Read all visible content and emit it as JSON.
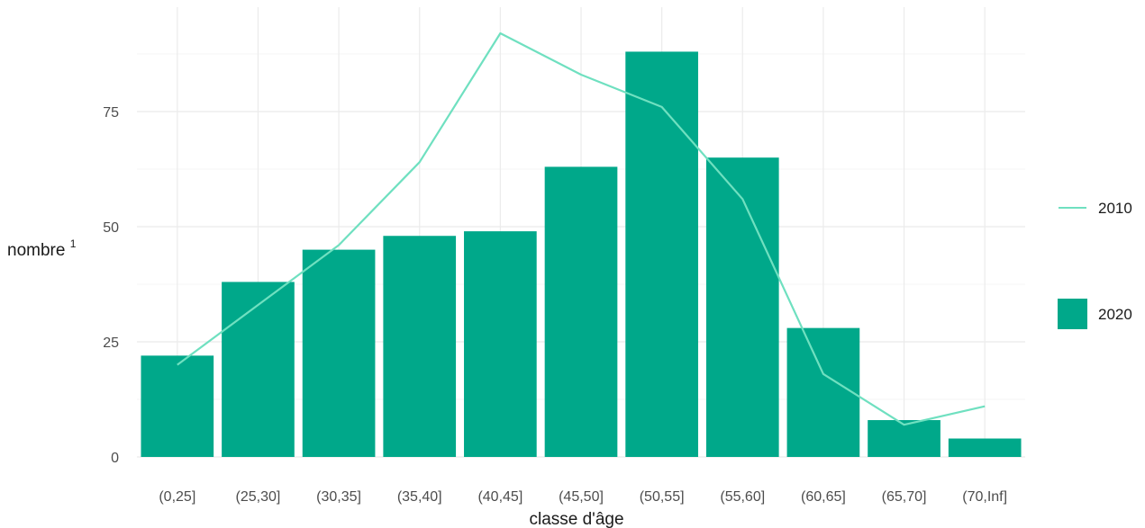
{
  "chart_data": {
    "type": "bar",
    "categories": [
      "(0,25]",
      "(25,30]",
      "(30,35]",
      "(35,40]",
      "(40,45]",
      "(45,50]",
      "(50,55]",
      "(55,60]",
      "(60,65]",
      "(65,70]",
      "(70,Inf]"
    ],
    "series": [
      {
        "name": "2020",
        "kind": "bar",
        "color": "#00a88a",
        "values": [
          22,
          38,
          45,
          48,
          49,
          63,
          88,
          65,
          28,
          8,
          4
        ]
      },
      {
        "name": "2010",
        "kind": "line",
        "color": "#6fe0c0",
        "values": [
          20,
          33,
          46,
          64,
          92,
          83,
          76,
          56,
          18,
          7,
          11
        ]
      }
    ],
    "xlabel": "classe d'âge",
    "ylabel": "nombre",
    "ylabel_superscript": "1",
    "ylim": [
      0,
      100
    ],
    "yticks": [
      0,
      25,
      50,
      75
    ],
    "grid": true,
    "legend_position": "right"
  }
}
